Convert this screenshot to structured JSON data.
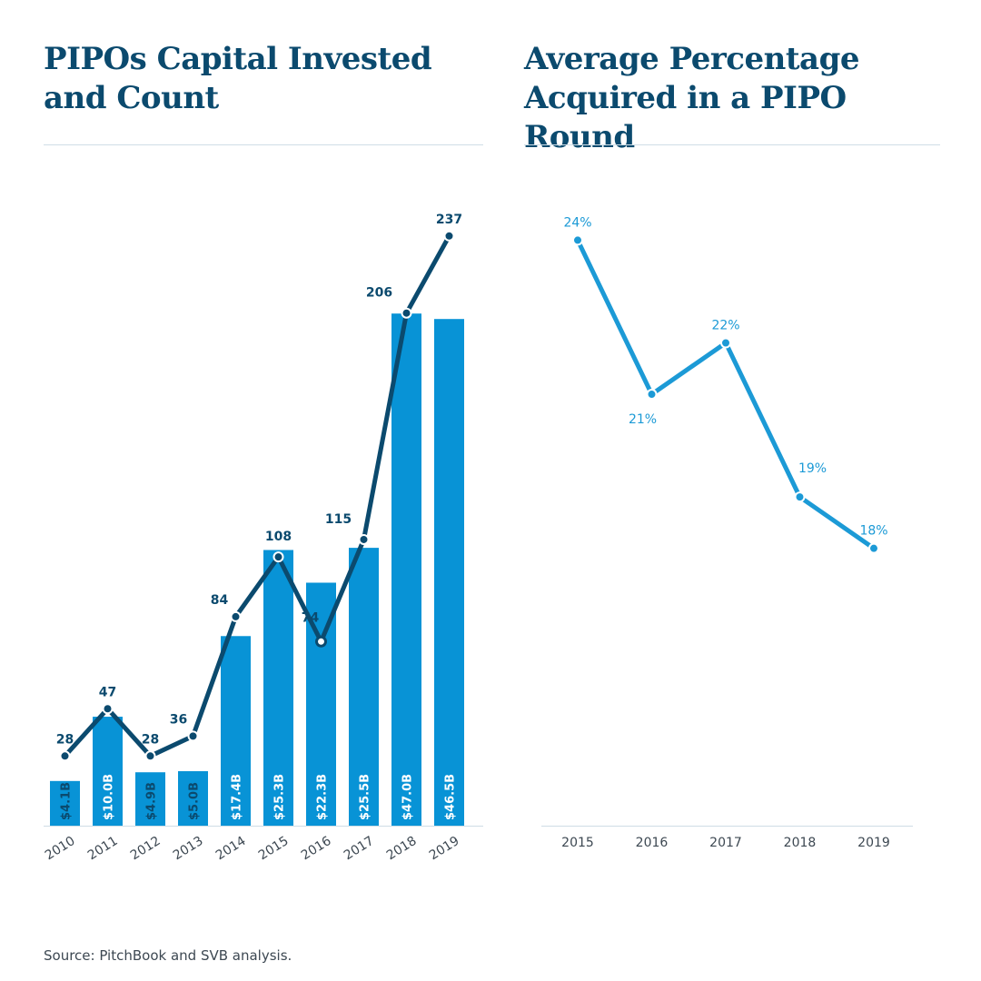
{
  "titles": {
    "left": [
      "PIPOs Capital Invested",
      "and Count"
    ],
    "right": [
      "Average Percentage",
      "Acquired in a PIPO Round"
    ]
  },
  "source": "Source: PitchBook and SVB analysis.",
  "colors": {
    "title": "#0b4a6e",
    "bar": "#0893d6",
    "count_line": "#0b4a6e",
    "pct_line": "#1c9ad6",
    "axis_text": "#3d4852"
  },
  "chart_data": [
    {
      "type": "bar",
      "title": "PIPOs Capital Invested and Count",
      "categories": [
        "2010",
        "2011",
        "2012",
        "2013",
        "2014",
        "2015",
        "2016",
        "2017",
        "2018",
        "2019"
      ],
      "series": [
        {
          "type": "bar",
          "values": [
            4.1,
            10.0,
            4.9,
            5.0,
            17.4,
            25.3,
            22.3,
            25.5,
            47.0,
            46.5
          ],
          "labels": [
            "$4.1B",
            "$10.0B",
            "$4.9B",
            "$5.0B",
            "$17.4B",
            "$25.3B",
            "$22.3B",
            "$25.5B",
            "$47.0B",
            "$46.5B"
          ]
        },
        {
          "type": "line",
          "values": [
            28,
            47,
            28,
            36,
            84,
            108,
            74,
            115,
            206,
            237
          ],
          "labels": [
            "28",
            "47",
            "28",
            "36",
            "84",
            "108",
            "74",
            "115",
            "206",
            "237"
          ]
        }
      ],
      "bar_ylim": [
        0,
        47.6
      ],
      "line_ylim": [
        0,
        280
      ],
      "grid": false,
      "legend": "none"
    },
    {
      "type": "line",
      "title": "Average Percentage Acquired in a PIPO Round",
      "categories": [
        "2015",
        "2016",
        "2017",
        "2018",
        "2019"
      ],
      "series": [
        {
          "values": [
            24,
            21,
            22,
            19,
            18
          ],
          "labels": [
            "24%",
            "21%",
            "22%",
            "19%",
            "18%"
          ]
        }
      ],
      "ylim": [
        12.6,
        26.2
      ],
      "grid": false,
      "legend": "none"
    }
  ]
}
